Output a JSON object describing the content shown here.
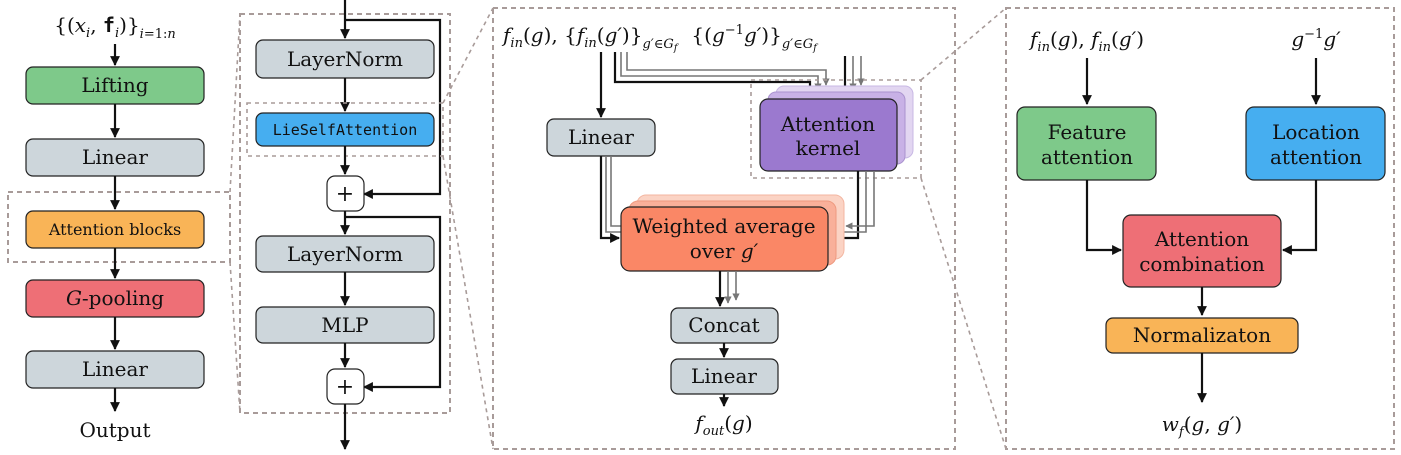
{
  "colors": {
    "green": "#7ec98a",
    "gray": "#cdd6db",
    "orange": "#f9b457",
    "red": "#ee6f76",
    "blue": "#46aef0",
    "purple": "#9b79cf",
    "salmon": "#fa8766"
  },
  "panel1": {
    "input_label": "{(x_i, f_i)}_{i=1:n}",
    "lifting": "Lifting",
    "linear1": "Linear",
    "attention_blocks": "Attention blocks",
    "pooling_italic": "G",
    "pooling": "-pooling",
    "linear2": "Linear",
    "output": "Output"
  },
  "panel2": {
    "layernorm1": "LayerNorm",
    "lieselfattention": "LieSelfAttention",
    "plus1": "+",
    "layernorm2": "LayerNorm",
    "mlp": "MLP",
    "plus2": "+"
  },
  "panel3": {
    "input_label": "f_in(g), {f_in(g′)}_{g′∈G_f}  {(g⁻¹g′)}_{g′∈G_f}",
    "linear": "Linear",
    "attention_kernel_1": "Attention",
    "attention_kernel_2": "kernel",
    "weighted_1": "Weighted average",
    "weighted_2": "over g′",
    "concat": "Concat",
    "linear2": "Linear",
    "output": "f_out(g)"
  },
  "panel4": {
    "input_left": "f_in(g), f_in(g′)",
    "input_right": "g⁻¹g′",
    "feature_1": "Feature",
    "feature_2": "attention",
    "location_1": "Location",
    "location_2": "attention",
    "combination_1": "Attention",
    "combination_2": "combination",
    "normalization": "Normalizaton",
    "output": "w_f(g, g′)"
  }
}
